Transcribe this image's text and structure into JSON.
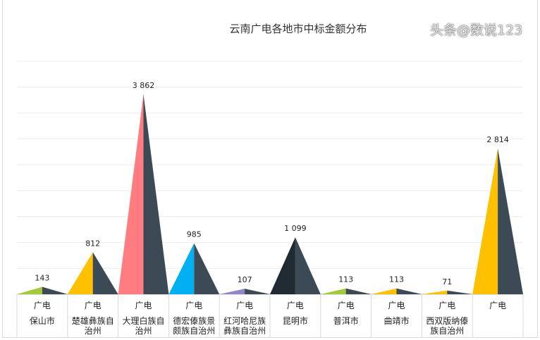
{
  "chart_data": {
    "type": "bar",
    "shape": "triangle",
    "title": "云南广电各地市中标金额分布",
    "categories": [
      [
        "广电",
        "保山市"
      ],
      [
        "广电",
        "楚雄彝族自",
        "治州"
      ],
      [
        "广电",
        "大理白族自",
        "治州"
      ],
      [
        "广电",
        "德宏傣族景",
        "颇族自治州"
      ],
      [
        "广电",
        "红河哈尼族",
        "彝族自治州"
      ],
      [
        "广电",
        "昆明市"
      ],
      [
        "广电",
        "普洱市"
      ],
      [
        "广电",
        "曲靖市"
      ],
      [
        "广电",
        "西双版纳傣",
        "族自治州"
      ],
      [
        "广电"
      ]
    ],
    "values": [
      143,
      812,
      3862,
      985,
      107,
      1099,
      113,
      113,
      71,
      2814
    ],
    "data_labels": [
      "143",
      "812",
      "3 862",
      "985",
      "107",
      "1 099",
      "113",
      "113",
      "71",
      "2 814"
    ],
    "colors": [
      "#a5c83a",
      "#ffc000",
      "#ff7c80",
      "#00b0f0",
      "#8f88c8",
      "#1f2a33",
      "#a5c83a",
      "#ffc000",
      "#ffc000",
      "#ffc000"
    ],
    "shadow_color": "#3b4a54",
    "ylim": [
      0,
      4500
    ],
    "grid": true,
    "legend": "none"
  },
  "watermark": "头条@数说123"
}
